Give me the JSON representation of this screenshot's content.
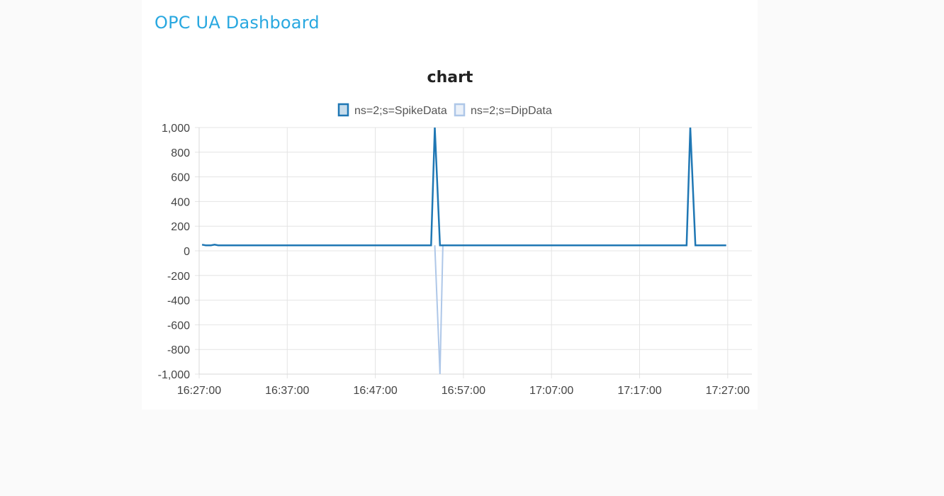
{
  "header": {
    "title": "OPC UA Dashboard"
  },
  "chart_data": {
    "type": "line",
    "title": "chart",
    "xlabel": "",
    "ylabel": "",
    "ylim": [
      -1000,
      1000
    ],
    "y_ticks": [
      1000,
      800,
      600,
      400,
      200,
      0,
      -200,
      -400,
      -600,
      -800,
      -1000
    ],
    "y_tick_labels": [
      "1,000",
      "800",
      "600",
      "400",
      "200",
      "0",
      "-200",
      "-400",
      "-600",
      "-800",
      "-1,000"
    ],
    "x_ticks": [
      "16:27:00",
      "16:37:00",
      "16:47:00",
      "16:57:00",
      "17:07:00",
      "17:17:00",
      "17:27:00"
    ],
    "x_range": [
      "16:27:00",
      "17:29:00"
    ],
    "grid": true,
    "legend_position": "top-center",
    "series": [
      {
        "name": "ns=2;s=SpikeData",
        "color": "#1f77b4",
        "points": [
          [
            "16:27:20",
            50
          ],
          [
            "16:27:45",
            45
          ],
          [
            "16:28:20",
            45
          ],
          [
            "16:28:45",
            50
          ],
          [
            "16:29:10",
            45
          ],
          [
            "16:53:20",
            45
          ],
          [
            "16:53:45",
            1000
          ],
          [
            "16:54:20",
            45
          ],
          [
            "17:22:20",
            45
          ],
          [
            "17:22:45",
            1000
          ],
          [
            "17:23:20",
            45
          ],
          [
            "17:26:50",
            45
          ]
        ]
      },
      {
        "name": "ns=2;s=DipData",
        "color": "#aec7e8",
        "points": [
          [
            "16:53:45",
            45
          ],
          [
            "16:54:20",
            -1000
          ],
          [
            "16:54:40",
            45
          ]
        ]
      }
    ]
  }
}
